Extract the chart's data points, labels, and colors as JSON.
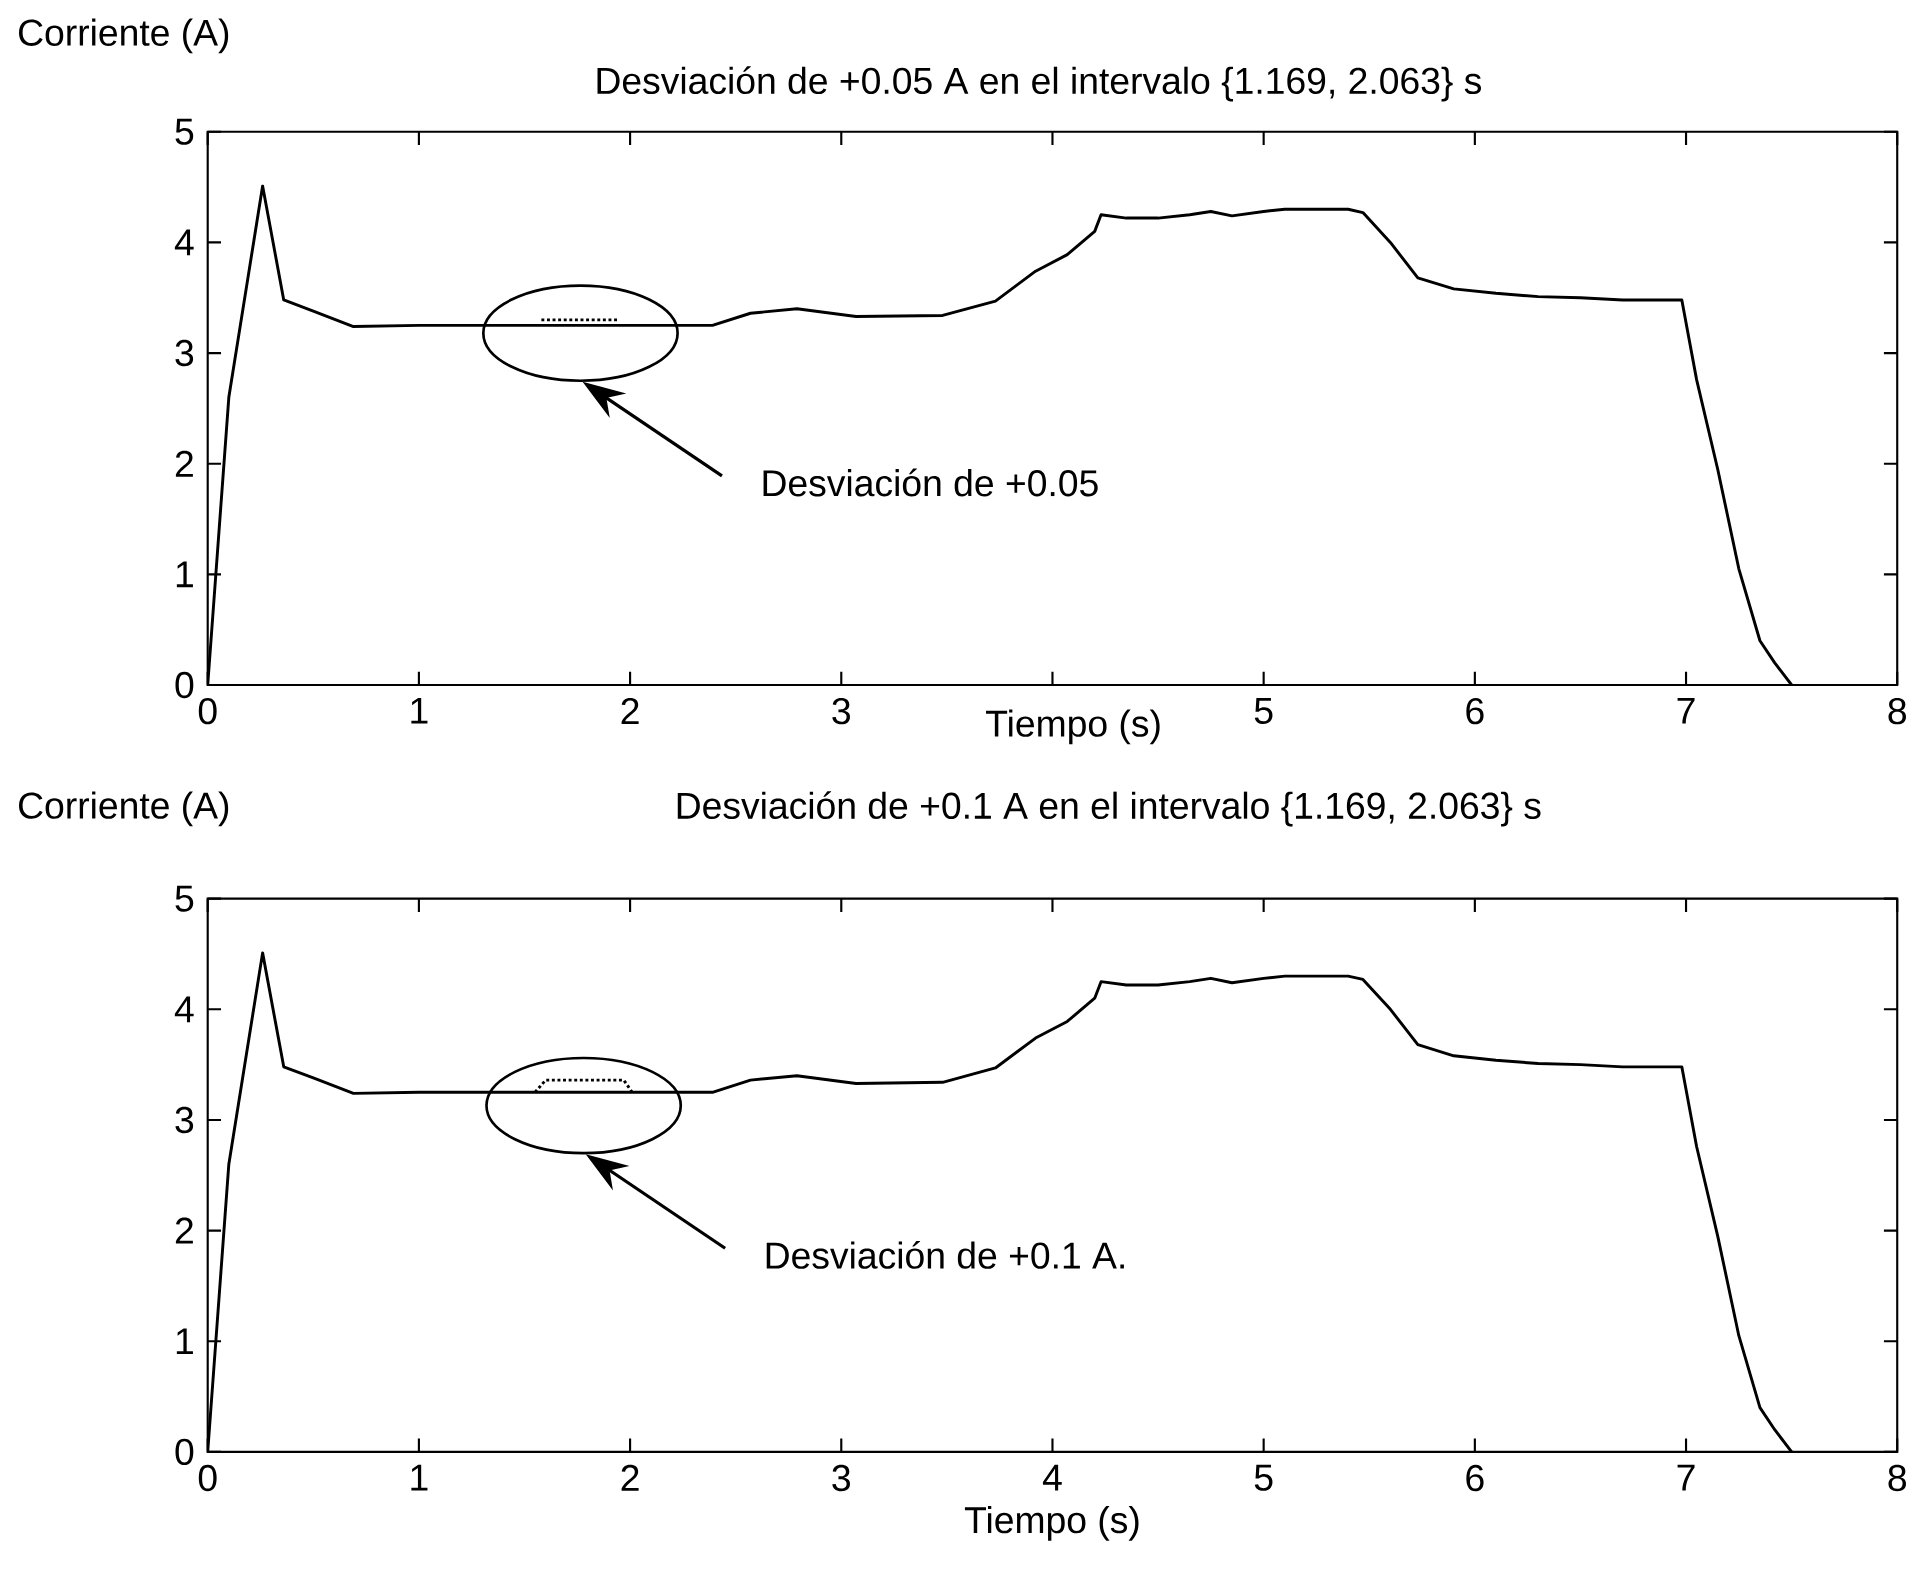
{
  "chart_data": [
    {
      "type": "line",
      "title": "Desviación de +0.05 A en el intervalo {1.169, 2.063} s",
      "ylabel": "Corriente (A)",
      "xlabel": "Tiempo (s)",
      "xlim": [
        0,
        8
      ],
      "ylim": [
        0,
        5
      ],
      "xticks": [
        0,
        1,
        2,
        3,
        {
          "value": 4,
          "label": null
        },
        5,
        6,
        7,
        8
      ],
      "yticks": [
        0,
        1,
        2,
        3,
        4,
        5
      ],
      "series": [
        {
          "color": "#000000",
          "x": [
            0,
            0.1,
            0.26,
            0.36,
            0.5,
            0.69,
            1.0,
            1.5,
            2.0,
            2.39,
            2.57,
            2.79,
            3.07,
            3.48,
            3.73,
            3.92,
            4.07,
            4.2,
            4.23,
            4.35,
            4.5,
            4.65,
            4.75,
            4.85,
            5.0,
            5.1,
            5.4,
            5.47,
            5.6,
            5.73,
            5.9,
            6.1,
            6.3,
            6.5,
            6.7,
            6.98,
            7.05,
            7.15,
            7.25,
            7.35,
            7.42,
            7.5
          ],
          "values": [
            0,
            2.6,
            4.51,
            3.48,
            3.38,
            3.24,
            3.25,
            3.25,
            3.25,
            3.25,
            3.36,
            3.4,
            3.33,
            3.34,
            3.47,
            3.74,
            3.89,
            4.1,
            4.25,
            4.22,
            4.22,
            4.25,
            4.28,
            4.24,
            4.28,
            4.3,
            4.3,
            4.27,
            4.0,
            3.68,
            3.58,
            3.54,
            3.51,
            3.5,
            3.48,
            3.48,
            2.76,
            1.95,
            1.05,
            0.4,
            0.2,
            0
          ]
        },
        {
          "color": "#000000",
          "line_style": "dotted",
          "x": [
            1.58,
            1.95
          ],
          "values": [
            3.3,
            3.3
          ]
        }
      ],
      "annotations": [
        "Desviación de +0.05"
      ]
    },
    {
      "type": "line",
      "title": "Desviación de +0.1 A en el intervalo {1.169, 2.063} s",
      "ylabel": "Corriente (A)",
      "xlabel": "Tiempo (s)",
      "xlim": [
        0,
        8
      ],
      "ylim": [
        0,
        5
      ],
      "xticks": [
        0,
        1,
        2,
        3,
        4,
        5,
        6,
        7,
        8
      ],
      "yticks": [
        0,
        1,
        2,
        3,
        4,
        5
      ],
      "series": [
        {
          "color": "#000000",
          "x": [
            0,
            0.1,
            0.26,
            0.36,
            0.5,
            0.69,
            1.0,
            1.5,
            2.0,
            2.39,
            2.57,
            2.79,
            3.07,
            3.48,
            3.73,
            3.92,
            4.07,
            4.2,
            4.23,
            4.35,
            4.5,
            4.65,
            4.75,
            4.85,
            5.0,
            5.1,
            5.4,
            5.47,
            5.6,
            5.73,
            5.9,
            6.1,
            6.3,
            6.5,
            6.7,
            6.98,
            7.05,
            7.15,
            7.25,
            7.35,
            7.42,
            7.5
          ],
          "values": [
            0,
            2.6,
            4.51,
            3.48,
            3.38,
            3.24,
            3.25,
            3.25,
            3.25,
            3.25,
            3.36,
            3.4,
            3.33,
            3.34,
            3.47,
            3.74,
            3.89,
            4.1,
            4.25,
            4.22,
            4.22,
            4.25,
            4.28,
            4.24,
            4.28,
            4.3,
            4.3,
            4.27,
            4.0,
            3.68,
            3.58,
            3.54,
            3.51,
            3.5,
            3.48,
            3.48,
            2.76,
            1.95,
            1.05,
            0.4,
            0.2,
            0
          ]
        },
        {
          "color": "#000000",
          "line_style": "dotted",
          "x": [
            1.55,
            1.6,
            1.97,
            2.01
          ],
          "values": [
            3.25,
            3.36,
            3.36,
            3.25
          ]
        }
      ],
      "annotations": [
        "Desviación de +0.1 A."
      ]
    }
  ]
}
